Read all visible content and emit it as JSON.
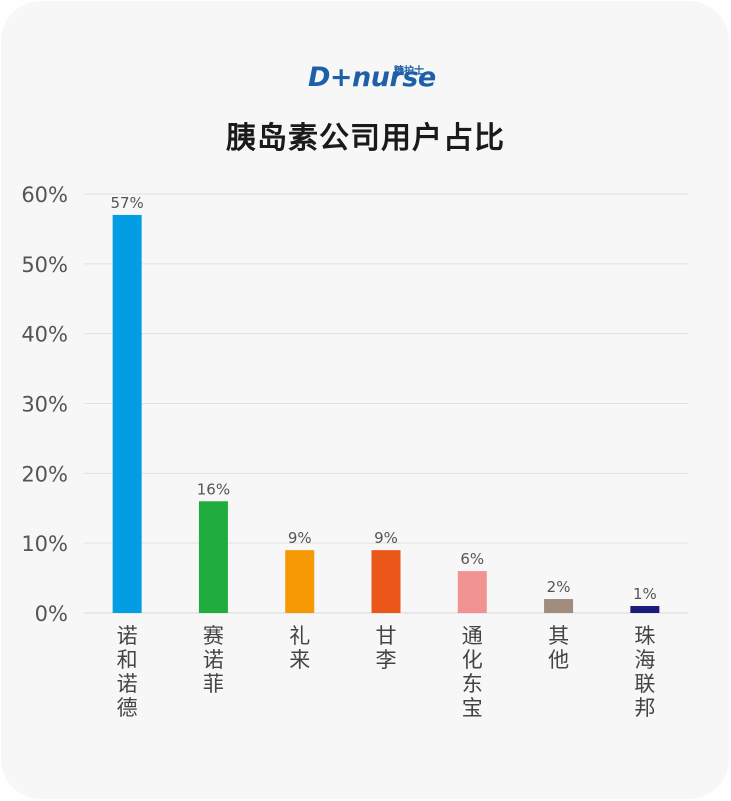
{
  "brand": {
    "wordmark": "D+nurse",
    "tagline": "糖护士"
  },
  "chart_data": {
    "type": "bar",
    "title": "胰岛素公司用户占比",
    "categories": [
      "诺和诺德",
      "赛诺菲",
      "礼来",
      "甘李",
      "通化东宝",
      "其他",
      "珠海联邦"
    ],
    "values": [
      57,
      16,
      9,
      9,
      6,
      2,
      1
    ],
    "value_labels": [
      "57%",
      "16%",
      "9%",
      "9%",
      "6%",
      "2%",
      "1%"
    ],
    "colors": [
      "#039de3",
      "#21ad3e",
      "#f59a04",
      "#eb5619",
      "#f19293",
      "#a18c7e",
      "#1b1b7e"
    ],
    "y_ticks": [
      "0%",
      "10%",
      "20%",
      "30%",
      "40%",
      "50%",
      "60%"
    ],
    "ylim": [
      0,
      60
    ],
    "xlabel": "",
    "ylabel": "",
    "grid": true,
    "legend": "none"
  }
}
